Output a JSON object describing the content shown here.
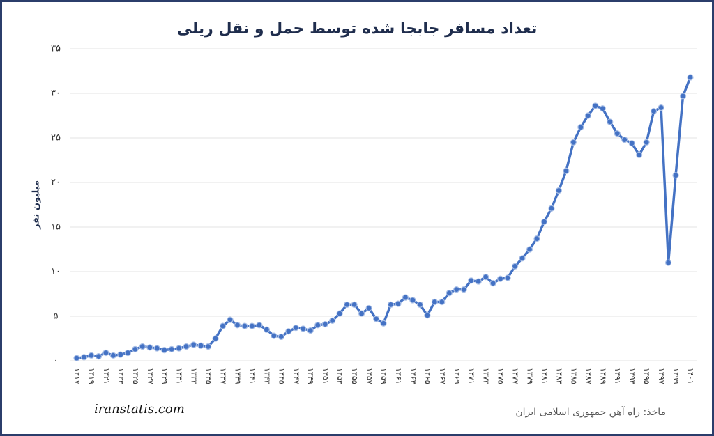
{
  "chart_data": {
    "type": "line",
    "title": "تعداد مسافر جابجا شده توسط حمل و نقل ریلی",
    "ylabel": "میلیون نفر",
    "source": "ماخذ: راه آهن جمهوری اسلامی ایران",
    "watermark": "iranstatis.com",
    "categories": [
      "۱۳۱۷",
      null,
      "۱۳۱۹",
      null,
      "۱۳۲۱",
      null,
      "۱۳۲۳",
      null,
      "۱۳۲۵",
      null,
      "۱۳۲۷",
      null,
      "۱۳۲۹",
      null,
      "۱۳۳۱",
      null,
      "۱۳۳۳",
      null,
      "۱۳۳۵",
      null,
      "۱۳۳۷",
      null,
      "۱۳۳۹",
      null,
      "۱۳۴۱",
      null,
      "۱۳۴۳",
      null,
      "۱۳۴۵",
      null,
      "۱۳۴۷",
      null,
      "۱۳۴۹",
      null,
      "۱۳۵۱",
      null,
      "۱۳۵۳",
      null,
      "۱۳۵۵",
      null,
      "۱۳۵۷",
      null,
      "۱۳۵۹",
      null,
      "۱۳۶۱",
      null,
      "۱۳۶۳",
      null,
      "۱۳۶۵",
      null,
      "۱۳۶۷",
      null,
      "۱۳۶۹",
      null,
      "۱۳۷۱",
      null,
      "۱۳۷۳",
      null,
      "۱۳۷۵",
      null,
      "۱۳۷۷",
      null,
      "۱۳۷۹",
      null,
      "۱۳۸۱",
      null,
      "۱۳۸۳",
      null,
      "۱۳۸۵",
      null,
      "۱۳۸۷",
      null,
      "۱۳۸۹",
      null,
      "۱۳۹۱",
      null,
      "۱۳۹۳",
      null,
      "۱۳۹۵",
      null,
      "۱۳۹۷",
      null,
      "۱۳۹۹",
      null,
      "۱۴۰۱"
    ],
    "values": [
      0.3,
      0.4,
      0.6,
      0.5,
      0.9,
      0.6,
      0.7,
      0.9,
      1.3,
      1.6,
      1.5,
      1.4,
      1.2,
      1.3,
      1.4,
      1.6,
      1.8,
      1.7,
      1.6,
      2.5,
      3.9,
      4.6,
      4.0,
      3.9,
      3.9,
      4.0,
      3.5,
      2.8,
      2.7,
      3.3,
      3.7,
      3.6,
      3.4,
      4.0,
      4.1,
      4.5,
      5.3,
      6.3,
      6.3,
      5.3,
      5.9,
      4.7,
      4.2,
      6.3,
      6.4,
      7.1,
      6.8,
      6.3,
      5.1,
      6.6,
      6.6,
      7.6,
      8.0,
      8.0,
      9.0,
      8.9,
      9.4,
      8.7,
      9.2,
      9.3,
      10.6,
      11.5,
      12.5,
      13.7,
      15.6,
      17.1,
      19.1,
      21.3,
      24.5,
      26.2,
      27.5,
      28.6,
      28.3,
      26.8,
      25.5,
      24.8,
      24.4,
      23.1,
      24.5,
      28.0,
      28.4,
      11.0,
      20.8,
      29.7,
      31.8
    ],
    "color": "#4472c4",
    "ylim": [
      0,
      35
    ],
    "yticks": [
      {
        "value": 0,
        "label": "۰"
      },
      {
        "value": 5,
        "label": "۵"
      },
      {
        "value": 10,
        "label": "۱۰"
      },
      {
        "value": 15,
        "label": "۱۵"
      },
      {
        "value": 20,
        "label": "۲۰"
      },
      {
        "value": 25,
        "label": "۲۵"
      },
      {
        "value": 30,
        "label": "۳۰"
      },
      {
        "value": 35,
        "label": "۳۵"
      }
    ],
    "grid": true
  }
}
